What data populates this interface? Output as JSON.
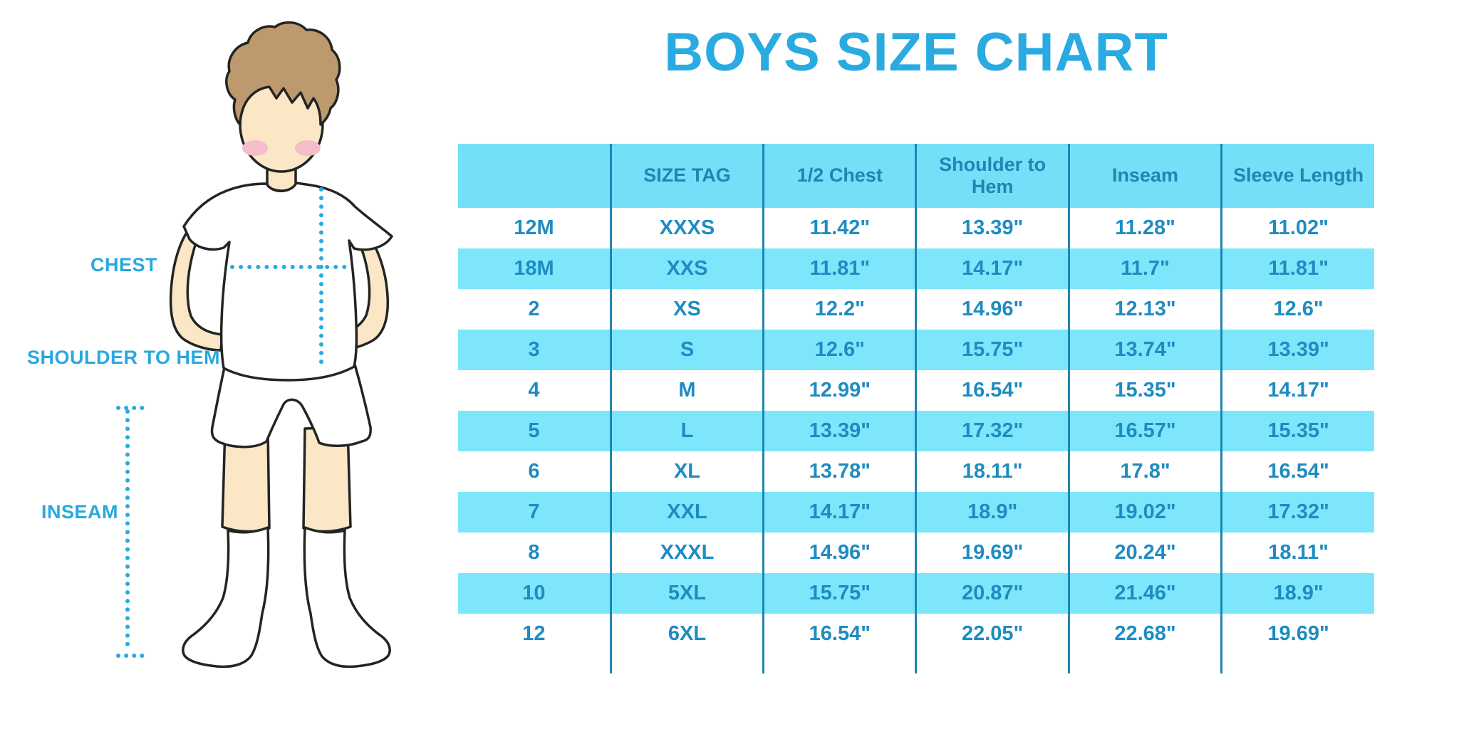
{
  "page": {
    "title": "BOYS SIZE CHART"
  },
  "figure": {
    "description": "boy-measurement-illustration",
    "labels": {
      "chest": "CHEST",
      "shoulder_to_hem": "SHOULDER TO HEM",
      "inseam": "INSEAM"
    }
  },
  "colors": {
    "title_blue": "#29ABE2",
    "label_blue": "#29A8E0",
    "dotted_line_blue": "#2BAAE2",
    "header_bg": "#73E0F7",
    "stripe_bg": "#7DE6FA",
    "divider_teal": "#1E86B2",
    "header_text": "#1F85B3",
    "cell_text": "#1E8CC2",
    "skin": "#FBE7C5",
    "hair_brown": "#BD9A6E",
    "blush_pink": "#F5BCCB",
    "garment_white": "#FFFFFF"
  },
  "chart_data": {
    "type": "table",
    "title": "BOYS SIZE CHART",
    "columns": [
      "",
      "SIZE TAG",
      "1/2 Chest",
      "Shoulder to Hem",
      "Inseam",
      "Sleeve Length"
    ],
    "rows": [
      [
        "12M",
        "XXXS",
        "11.42\"",
        "13.39\"",
        "11.28\"",
        "11.02\""
      ],
      [
        "18M",
        "XXS",
        "11.81\"",
        "14.17\"",
        "11.7\"",
        "11.81\""
      ],
      [
        "2",
        "XS",
        "12.2\"",
        "14.96\"",
        "12.13\"",
        "12.6\""
      ],
      [
        "3",
        "S",
        "12.6\"",
        "15.75\"",
        "13.74\"",
        "13.39\""
      ],
      [
        "4",
        "M",
        "12.99\"",
        "16.54\"",
        "15.35\"",
        "14.17\""
      ],
      [
        "5",
        "L",
        "13.39\"",
        "17.32\"",
        "16.57\"",
        "15.35\""
      ],
      [
        "6",
        "XL",
        "13.78\"",
        "18.11\"",
        "17.8\"",
        "16.54\""
      ],
      [
        "7",
        "XXL",
        "14.17\"",
        "18.9\"",
        "19.02\"",
        "17.32\""
      ],
      [
        "8",
        "XXXL",
        "14.96\"",
        "19.69\"",
        "20.24\"",
        "18.11\""
      ],
      [
        "10",
        "5XL",
        "15.75\"",
        "20.87\"",
        "21.46\"",
        "18.9\""
      ],
      [
        "12",
        "6XL",
        "16.54\"",
        "22.05\"",
        "22.68\"",
        "19.69\""
      ]
    ]
  }
}
